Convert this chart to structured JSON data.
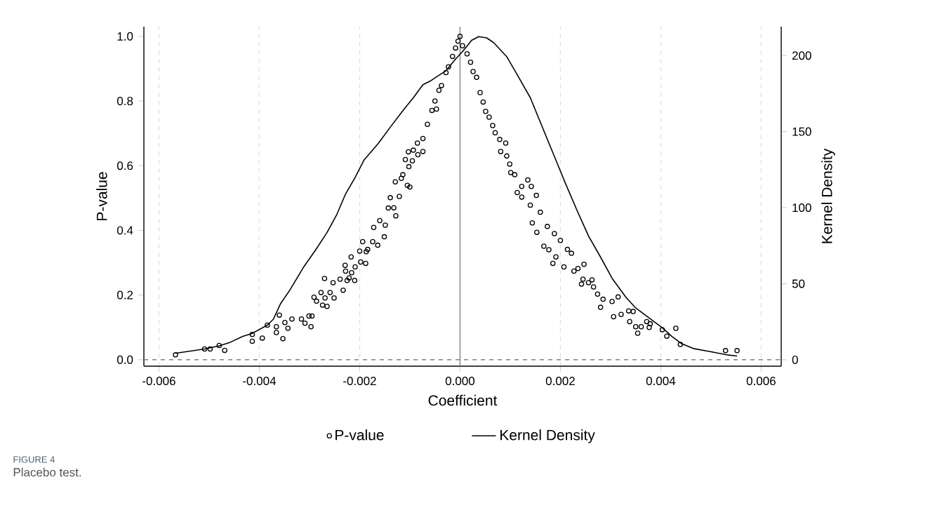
{
  "chart_data": {
    "type": "scatter",
    "xlabel": "Coefficient",
    "ylabel": "P-value",
    "y2label": "Kernel Density",
    "annotations": [
      "FIGURE 4",
      "Placebo test."
    ],
    "xlim": [
      -0.0063,
      0.0064
    ],
    "ylim": [
      -0.02,
      1.03
    ],
    "y2lim": [
      -4.2,
      219
    ],
    "xticks": [
      {
        "value": -0.006,
        "label": "-0.006"
      },
      {
        "value": -0.004,
        "label": "-0.004"
      },
      {
        "value": -0.002,
        "label": "-0.002"
      },
      {
        "value": 0,
        "label": "0.000"
      },
      {
        "value": 0.002,
        "label": "0.002"
      },
      {
        "value": 0.004,
        "label": "0.004"
      },
      {
        "value": 0.006,
        "label": "0.006"
      }
    ],
    "yticks": [
      {
        "value": 0,
        "label": "0.0"
      },
      {
        "value": 0.2,
        "label": "0.2"
      },
      {
        "value": 0.4,
        "label": "0.4"
      },
      {
        "value": 0.6,
        "label": "0.6"
      },
      {
        "value": 0.8,
        "label": "0.8"
      },
      {
        "value": 1,
        "label": "1.0"
      }
    ],
    "y2ticks": [
      0,
      50,
      100,
      150,
      200
    ],
    "grid": "x",
    "legend": "bottom",
    "ref_lines": [
      {
        "axis": "y",
        "value": 0,
        "color": "#808080",
        "line_style": "dashed"
      },
      {
        "axis": "x",
        "value": 0,
        "color": "#808080",
        "line_style": "solid"
      }
    ],
    "series": [
      {
        "name": "P-value",
        "marker": "circle",
        "color": "#000000",
        "x": [
          -0.00567,
          -0.00509,
          -0.00498,
          -0.0048,
          -0.00469,
          -0.00414,
          -0.00414,
          -0.00394,
          -0.00384,
          -0.00366,
          -0.00366,
          -0.0036,
          -0.00353,
          -0.00349,
          -0.00343,
          -0.00335,
          -0.00316,
          -0.00309,
          -0.00301,
          -0.00295,
          -0.00297,
          -0.00291,
          -0.00286,
          -0.00277,
          -0.00274,
          -0.0027,
          -0.00269,
          -0.00265,
          -0.00259,
          -0.00253,
          -0.00251,
          -0.00239,
          -0.00233,
          -0.00229,
          -0.00228,
          -0.00225,
          -0.00221,
          -0.00217,
          -0.00216,
          -0.0021,
          -0.00209,
          -0.002,
          -0.00198,
          -0.00194,
          -0.00188,
          -0.00187,
          -0.00184,
          -0.00174,
          -0.00172,
          -0.00164,
          -0.0016,
          -0.00151,
          -0.00149,
          -0.00143,
          -0.00139,
          -0.00132,
          -0.00129,
          -0.00128,
          -0.00121,
          -0.00117,
          -0.00114,
          -0.00109,
          -0.00105,
          -0.00103,
          -0.00102,
          -0.001,
          -0.00095,
          -0.00093,
          -0.00085,
          -0.00084,
          -0.00074,
          -0.00074,
          -0.00065,
          -0.00056,
          -0.0005,
          -0.00047,
          -0.00042,
          -0.00037,
          -0.00028,
          -0.00023,
          -0.00015,
          -9e-05,
          -4e-05,
          0.0,
          5e-05,
          0.00014,
          0.00021,
          0.00026,
          0.00033,
          0.0004,
          0.00046,
          0.00051,
          0.00058,
          0.00065,
          0.0007,
          0.00079,
          0.00081,
          0.00091,
          0.00093,
          0.00099,
          0.00101,
          0.00109,
          0.00114,
          0.00123,
          0.00123,
          0.00135,
          0.00142,
          0.00152,
          0.0014,
          0.00144,
          0.00153,
          0.0016,
          0.00167,
          0.00174,
          0.00177,
          0.00185,
          0.00188,
          0.00191,
          0.002,
          0.00207,
          0.00214,
          0.00222,
          0.00227,
          0.00235,
          0.00242,
          0.00247,
          0.00245,
          0.00256,
          0.00263,
          0.00266,
          0.00274,
          0.0028,
          0.00285,
          0.00303,
          0.00306,
          0.00315,
          0.00321,
          0.00336,
          0.00338,
          0.00345,
          0.0035,
          0.00354,
          0.00361,
          0.00372,
          0.00377,
          0.00379,
          0.00403,
          0.00412,
          0.0043,
          0.00439,
          0.00529,
          0.00552
        ],
        "values": [
          0.015,
          0.033,
          0.033,
          0.044,
          0.029,
          0.057,
          0.078,
          0.067,
          0.107,
          0.102,
          0.084,
          0.138,
          0.065,
          0.115,
          0.097,
          0.126,
          0.126,
          0.113,
          0.135,
          0.135,
          0.102,
          0.193,
          0.181,
          0.208,
          0.169,
          0.251,
          0.191,
          0.165,
          0.208,
          0.238,
          0.191,
          0.249,
          0.215,
          0.292,
          0.274,
          0.245,
          0.253,
          0.318,
          0.269,
          0.245,
          0.287,
          0.336,
          0.302,
          0.365,
          0.298,
          0.334,
          0.341,
          0.365,
          0.409,
          0.354,
          0.43,
          0.38,
          0.416,
          0.469,
          0.501,
          0.47,
          0.55,
          0.445,
          0.505,
          0.561,
          0.572,
          0.619,
          0.539,
          0.643,
          0.597,
          0.534,
          0.615,
          0.648,
          0.67,
          0.634,
          0.644,
          0.684,
          0.728,
          0.771,
          0.8,
          0.775,
          0.833,
          0.848,
          0.888,
          0.906,
          0.938,
          0.964,
          0.985,
          1.0,
          0.971,
          0.946,
          0.92,
          0.891,
          0.873,
          0.826,
          0.797,
          0.768,
          0.75,
          0.724,
          0.702,
          0.681,
          0.644,
          0.67,
          0.63,
          0.605,
          0.579,
          0.572,
          0.517,
          0.536,
          0.503,
          0.556,
          0.536,
          0.508,
          0.478,
          0.423,
          0.394,
          0.456,
          0.351,
          0.412,
          0.34,
          0.298,
          0.39,
          0.318,
          0.369,
          0.287,
          0.341,
          0.329,
          0.274,
          0.282,
          0.234,
          0.295,
          0.249,
          0.238,
          0.247,
          0.225,
          0.203,
          0.162,
          0.187,
          0.18,
          0.133,
          0.194,
          0.14,
          0.151,
          0.118,
          0.149,
          0.102,
          0.082,
          0.102,
          0.118,
          0.1,
          0.111,
          0.093,
          0.073,
          0.097,
          0.047,
          0.028,
          0.028
        ]
      },
      {
        "name": "Kernel Density",
        "type": "line",
        "axis": "y2",
        "color": "#000000",
        "line_style": "solid",
        "marker": "none",
        "x": [
          -0.00567,
          -0.00509,
          -0.0048,
          -0.0046,
          -0.00433,
          -0.00414,
          -0.00384,
          -0.00372,
          -0.00358,
          -0.00339,
          -0.00311,
          -0.00288,
          -0.00265,
          -0.00246,
          -0.00228,
          -0.00209,
          -0.00191,
          -0.00177,
          -0.00163,
          -0.00137,
          -0.00112,
          -0.00093,
          -0.00074,
          -0.0006,
          -0.00046,
          -0.00028,
          -9e-05,
          4e-05,
          0.00014,
          0.00023,
          0.00037,
          0.00053,
          0.00067,
          0.00093,
          0.00116,
          0.0014,
          0.00163,
          0.00186,
          0.00209,
          0.00233,
          0.00256,
          0.0028,
          0.00303,
          0.0033,
          0.00349,
          0.00377,
          0.00402,
          0.00423,
          0.00442,
          0.00465,
          0.00497,
          0.00535,
          0.00552
        ],
        "values": [
          4.3,
          7.1,
          9.2,
          11.2,
          15.4,
          17.4,
          22.8,
          26.7,
          36.7,
          45.9,
          61.3,
          72.1,
          83.7,
          95.2,
          109.1,
          119.9,
          131.5,
          136.8,
          142.2,
          153.8,
          164.6,
          172.3,
          180.8,
          183.1,
          186.2,
          190.0,
          197.7,
          202.3,
          206.2,
          210.0,
          212.4,
          211.6,
          208.5,
          199.3,
          186.2,
          172.3,
          153.8,
          135.3,
          116.8,
          98.3,
          81.4,
          67.5,
          53.6,
          41.3,
          34.4,
          27.4,
          21.3,
          15.1,
          10.5,
          7.4,
          5.5,
          3.1,
          2.5
        ]
      }
    ]
  }
}
